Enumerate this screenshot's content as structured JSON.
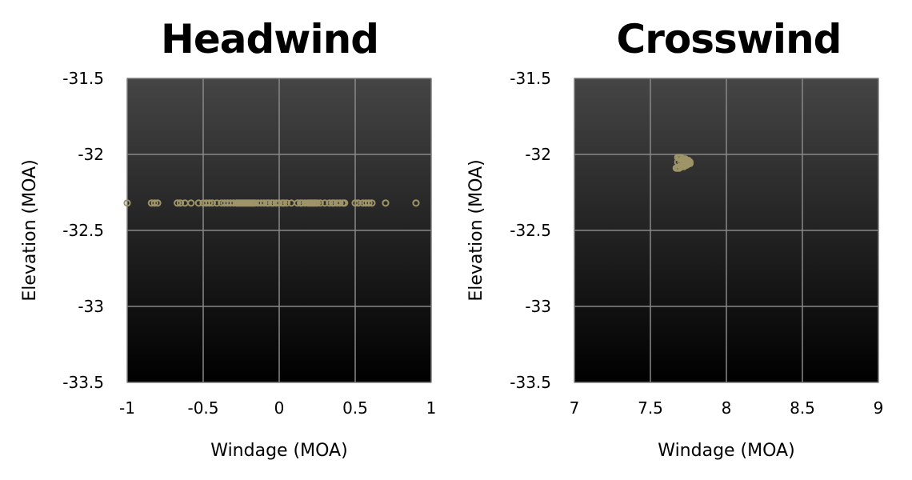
{
  "chart_data": [
    {
      "type": "scatter",
      "title": "Headwind",
      "xlabel": "Windage (MOA)",
      "ylabel": "Elevation (MOA)",
      "xlim": [
        -1,
        1
      ],
      "ylim": [
        -33.5,
        -31.5
      ],
      "xticks": [
        -1,
        -0.5,
        0,
        0.5,
        1
      ],
      "xtick_labels": [
        "-1",
        "-0.5",
        "0",
        "0.5",
        "1"
      ],
      "yticks": [
        -31.5,
        -32,
        -32.5,
        -33,
        -33.5
      ],
      "ytick_labels": [
        "-31.5",
        "-32",
        "-32.5",
        "-33",
        "-33.5"
      ],
      "grid": true,
      "legend": "none",
      "marker_color": "#9e9468",
      "background_gradient": [
        "#454545",
        "#000000"
      ],
      "series": [
        {
          "x": [
            -1.0,
            -0.84,
            -0.82,
            -0.8,
            -0.67,
            -0.65,
            -0.62,
            -0.58,
            -0.53,
            -0.5,
            -0.48,
            -0.46,
            -0.44,
            -0.41,
            -0.38,
            -0.36,
            -0.34,
            -0.32,
            -0.3,
            -0.28,
            -0.27,
            -0.26,
            -0.25,
            -0.24,
            -0.23,
            -0.22,
            -0.21,
            -0.2,
            -0.19,
            -0.18,
            -0.17,
            -0.16,
            -0.14,
            -0.12,
            -0.1,
            -0.08,
            -0.07,
            -0.05,
            -0.04,
            -0.02,
            0.0,
            0.02,
            0.03,
            0.05,
            0.08,
            0.12,
            0.14,
            0.15,
            0.17,
            0.19,
            0.2,
            0.21,
            0.22,
            0.23,
            0.24,
            0.25,
            0.27,
            0.3,
            0.33,
            0.35,
            0.36,
            0.38,
            0.4,
            0.42,
            0.43,
            0.5,
            0.52,
            0.55,
            0.57,
            0.59,
            0.61,
            0.7,
            0.9
          ],
          "y": [
            -32.32,
            -32.32,
            -32.32,
            -32.32,
            -32.32,
            -32.32,
            -32.32,
            -32.32,
            -32.32,
            -32.32,
            -32.32,
            -32.32,
            -32.32,
            -32.32,
            -32.32,
            -32.32,
            -32.32,
            -32.32,
            -32.32,
            -32.32,
            -32.32,
            -32.32,
            -32.32,
            -32.32,
            -32.32,
            -32.32,
            -32.32,
            -32.32,
            -32.32,
            -32.32,
            -32.32,
            -32.32,
            -32.32,
            -32.32,
            -32.32,
            -32.32,
            -32.32,
            -32.32,
            -32.32,
            -32.32,
            -32.32,
            -32.32,
            -32.32,
            -32.32,
            -32.32,
            -32.32,
            -32.32,
            -32.32,
            -32.32,
            -32.32,
            -32.32,
            -32.32,
            -32.32,
            -32.32,
            -32.32,
            -32.32,
            -32.32,
            -32.32,
            -32.32,
            -32.32,
            -32.32,
            -32.32,
            -32.32,
            -32.32,
            -32.32,
            -32.32,
            -32.32,
            -32.32,
            -32.32,
            -32.32,
            -32.32,
            -32.32,
            -32.32
          ]
        }
      ]
    },
    {
      "type": "scatter",
      "title": "Crosswind",
      "xlabel": "Windage (MOA)",
      "ylabel": "Elevation (MOA)",
      "xlim": [
        7,
        9
      ],
      "ylim": [
        -33.5,
        -31.5
      ],
      "xticks": [
        7,
        7.5,
        8,
        8.5,
        9
      ],
      "xtick_labels": [
        "7",
        "7.5",
        "8",
        "8.5",
        "9"
      ],
      "yticks": [
        -31.5,
        -32,
        -32.5,
        -33,
        -33.5
      ],
      "ytick_labels": [
        "-31.5",
        "-32",
        "-32.5",
        "-33",
        "-33.5"
      ],
      "grid": true,
      "legend": "none",
      "marker_color": "#9e9468",
      "background_gradient": [
        "#454545",
        "#000000"
      ],
      "series": [
        {
          "x": [
            7.68,
            7.69,
            7.7,
            7.71,
            7.72,
            7.73,
            7.74,
            7.75,
            7.76,
            7.76,
            7.75,
            7.74,
            7.73,
            7.72,
            7.71,
            7.7,
            7.69,
            7.68,
            7.67,
            7.68,
            7.7,
            7.72,
            7.74,
            7.73,
            7.71
          ],
          "y": [
            -32.02,
            -32.02,
            -32.02,
            -32.03,
            -32.03,
            -32.03,
            -32.04,
            -32.04,
            -32.05,
            -32.06,
            -32.06,
            -32.07,
            -32.07,
            -32.08,
            -32.08,
            -32.08,
            -32.09,
            -32.09,
            -32.09,
            -32.05,
            -32.05,
            -32.05,
            -32.05,
            -32.07,
            -32.04
          ]
        }
      ]
    }
  ]
}
